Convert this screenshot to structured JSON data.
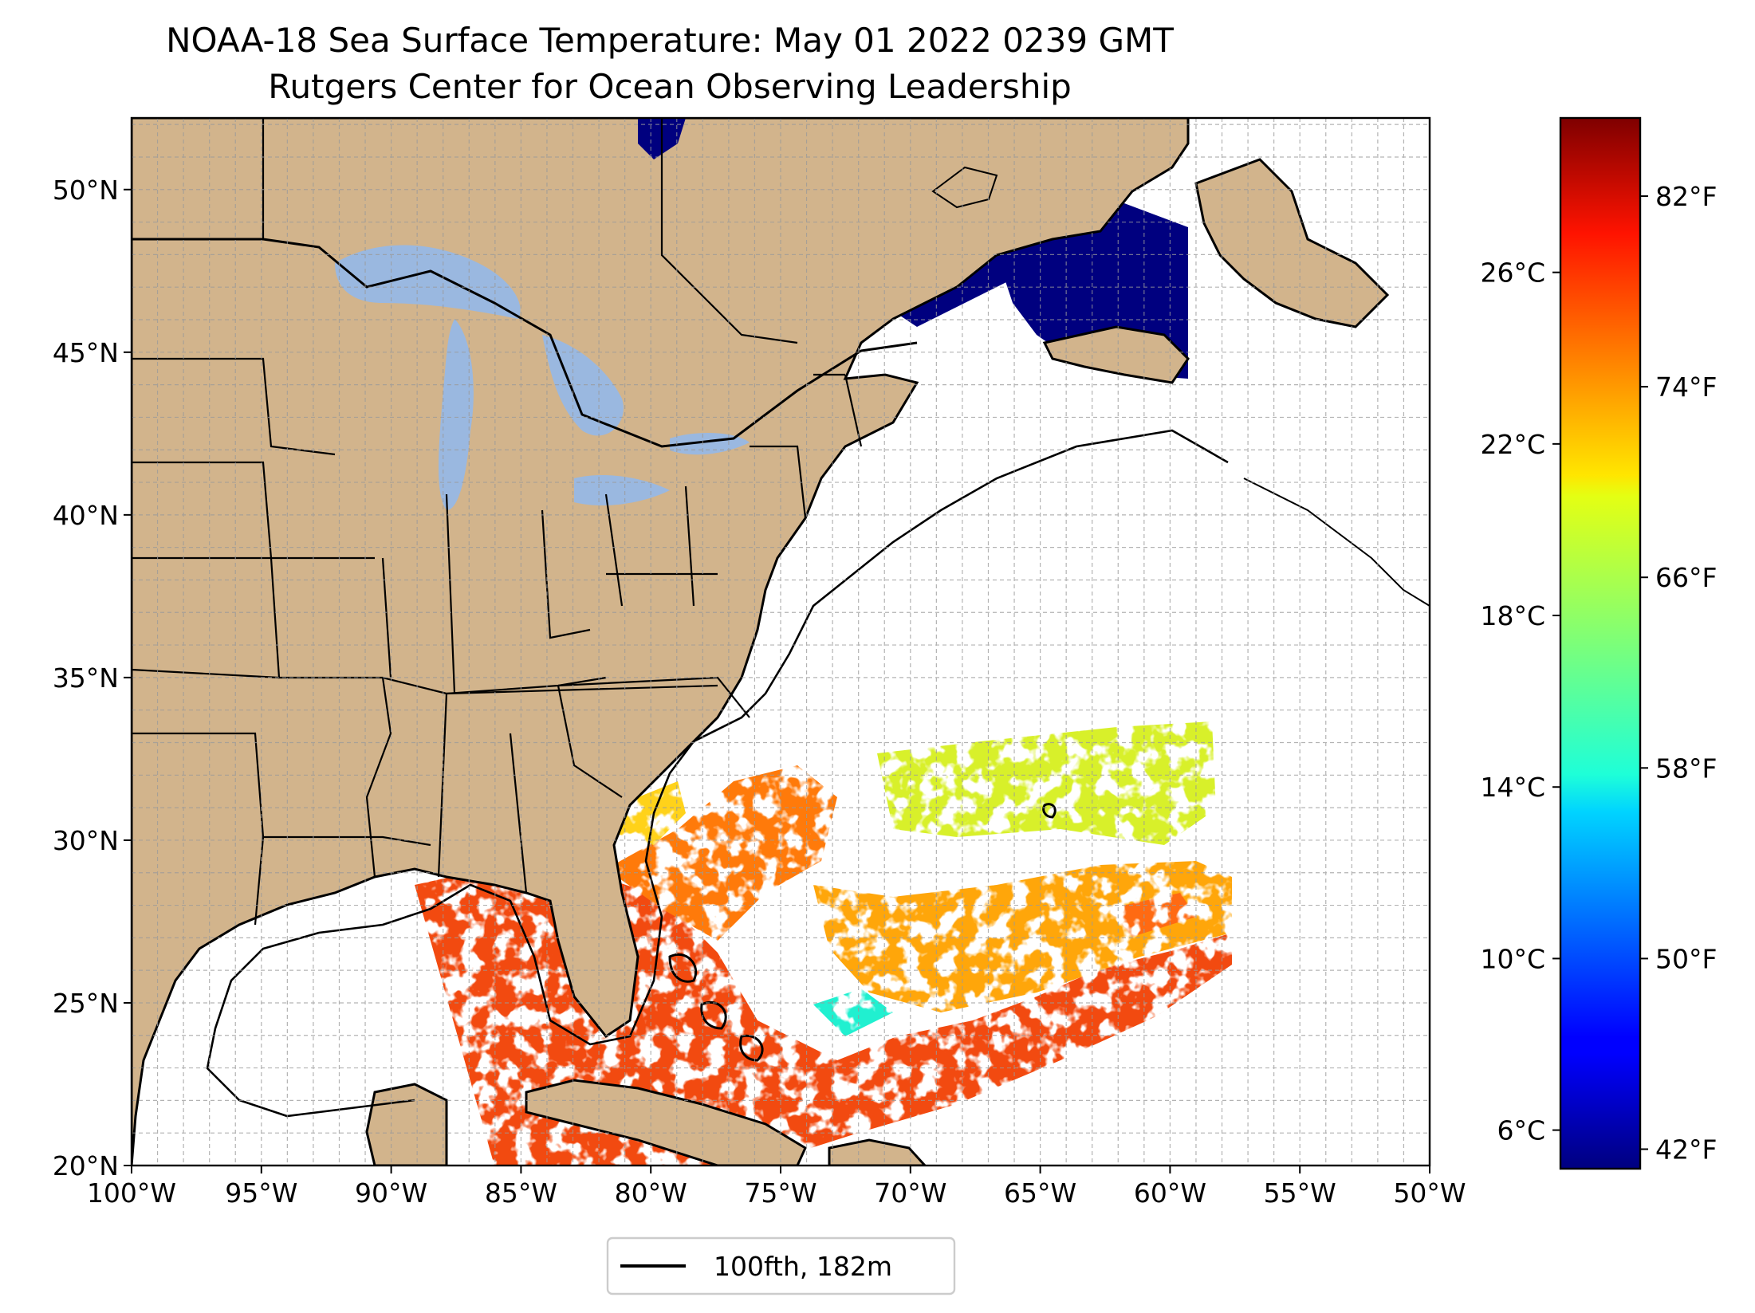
{
  "title": "NOAA-18 Sea Surface Temperature: May 01 2022 0239 GMT",
  "subtitle": "Rutgers Center for Ocean Observing Leadership",
  "map": {
    "lon_range": [
      -100,
      -50
    ],
    "lat_range": [
      20,
      52.2
    ],
    "lon_ticks": [
      {
        "value": -100,
        "label": "100°W"
      },
      {
        "value": -95,
        "label": "95°W"
      },
      {
        "value": -90,
        "label": "90°W"
      },
      {
        "value": -85,
        "label": "85°W"
      },
      {
        "value": -80,
        "label": "80°W"
      },
      {
        "value": -75,
        "label": "75°W"
      },
      {
        "value": -70,
        "label": "70°W"
      },
      {
        "value": -65,
        "label": "65°W"
      },
      {
        "value": -60,
        "label": "60°W"
      },
      {
        "value": -55,
        "label": "55°W"
      },
      {
        "value": -50,
        "label": "50°W"
      }
    ],
    "lat_ticks": [
      {
        "value": 20,
        "label": "20°N"
      },
      {
        "value": 25,
        "label": "25°N"
      },
      {
        "value": 30,
        "label": "30°N"
      },
      {
        "value": 35,
        "label": "35°N"
      },
      {
        "value": 40,
        "label": "40°N"
      },
      {
        "value": 45,
        "label": "45°N"
      },
      {
        "value": 50,
        "label": "50°N"
      }
    ],
    "grid": "dashed every 1 degree",
    "colors": {
      "land": "#d2b48c",
      "lakes": "#9ab8e0",
      "ocean": "#ffffff",
      "cold_water": "#00007f",
      "coastline": "#000000"
    }
  },
  "colorbar": {
    "colormap": "jet",
    "min_c": 5.1,
    "max_c": 29.6,
    "celsius_ticks": [
      {
        "value": 6,
        "label": "6°C"
      },
      {
        "value": 10,
        "label": "10°C"
      },
      {
        "value": 14,
        "label": "14°C"
      },
      {
        "value": 18,
        "label": "18°C"
      },
      {
        "value": 22,
        "label": "22°C"
      },
      {
        "value": 26,
        "label": "26°C"
      }
    ],
    "fahrenheit_ticks": [
      {
        "value": 42,
        "label": "42°F"
      },
      {
        "value": 50,
        "label": "50°F"
      },
      {
        "value": 58,
        "label": "58°F"
      },
      {
        "value": 66,
        "label": "66°F"
      },
      {
        "value": 74,
        "label": "74°F"
      },
      {
        "value": 82,
        "label": "82°F"
      }
    ]
  },
  "legend": {
    "label": "100fth, 182m",
    "placement": "bottom-center",
    "color": "#000000"
  }
}
